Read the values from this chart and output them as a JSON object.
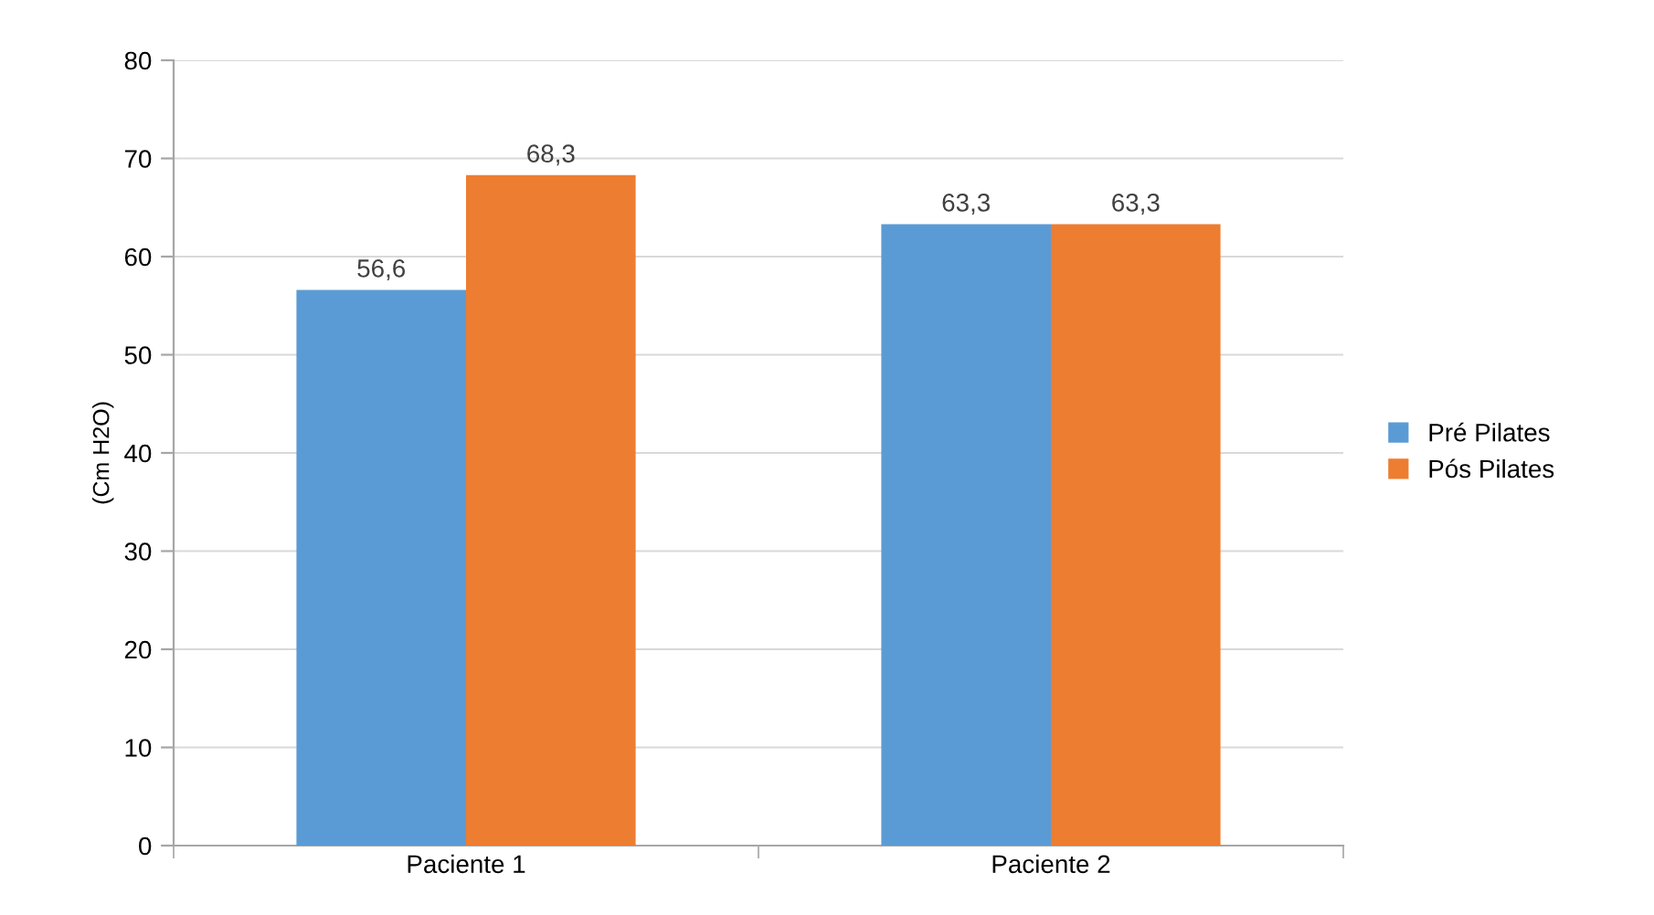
{
  "chart_data": {
    "type": "bar",
    "ylabel": "(Cm H2O)",
    "categories": [
      "Paciente 1",
      "Paciente 2"
    ],
    "series": [
      {
        "name": "Pré Pilates",
        "color": "#5b9bd5",
        "values": [
          56.6,
          63.3
        ],
        "value_labels": [
          "56,6",
          "63,3"
        ]
      },
      {
        "name": "Pós Pilates",
        "color": "#ed7d31",
        "values": [
          68.3,
          63.3
        ],
        "value_labels": [
          "68,3",
          "63,3"
        ]
      }
    ],
    "ylim": [
      0,
      80
    ],
    "yticks": [
      0,
      10,
      20,
      30,
      40,
      50,
      60,
      70,
      80
    ],
    "grid": "y",
    "legend": "right"
  }
}
